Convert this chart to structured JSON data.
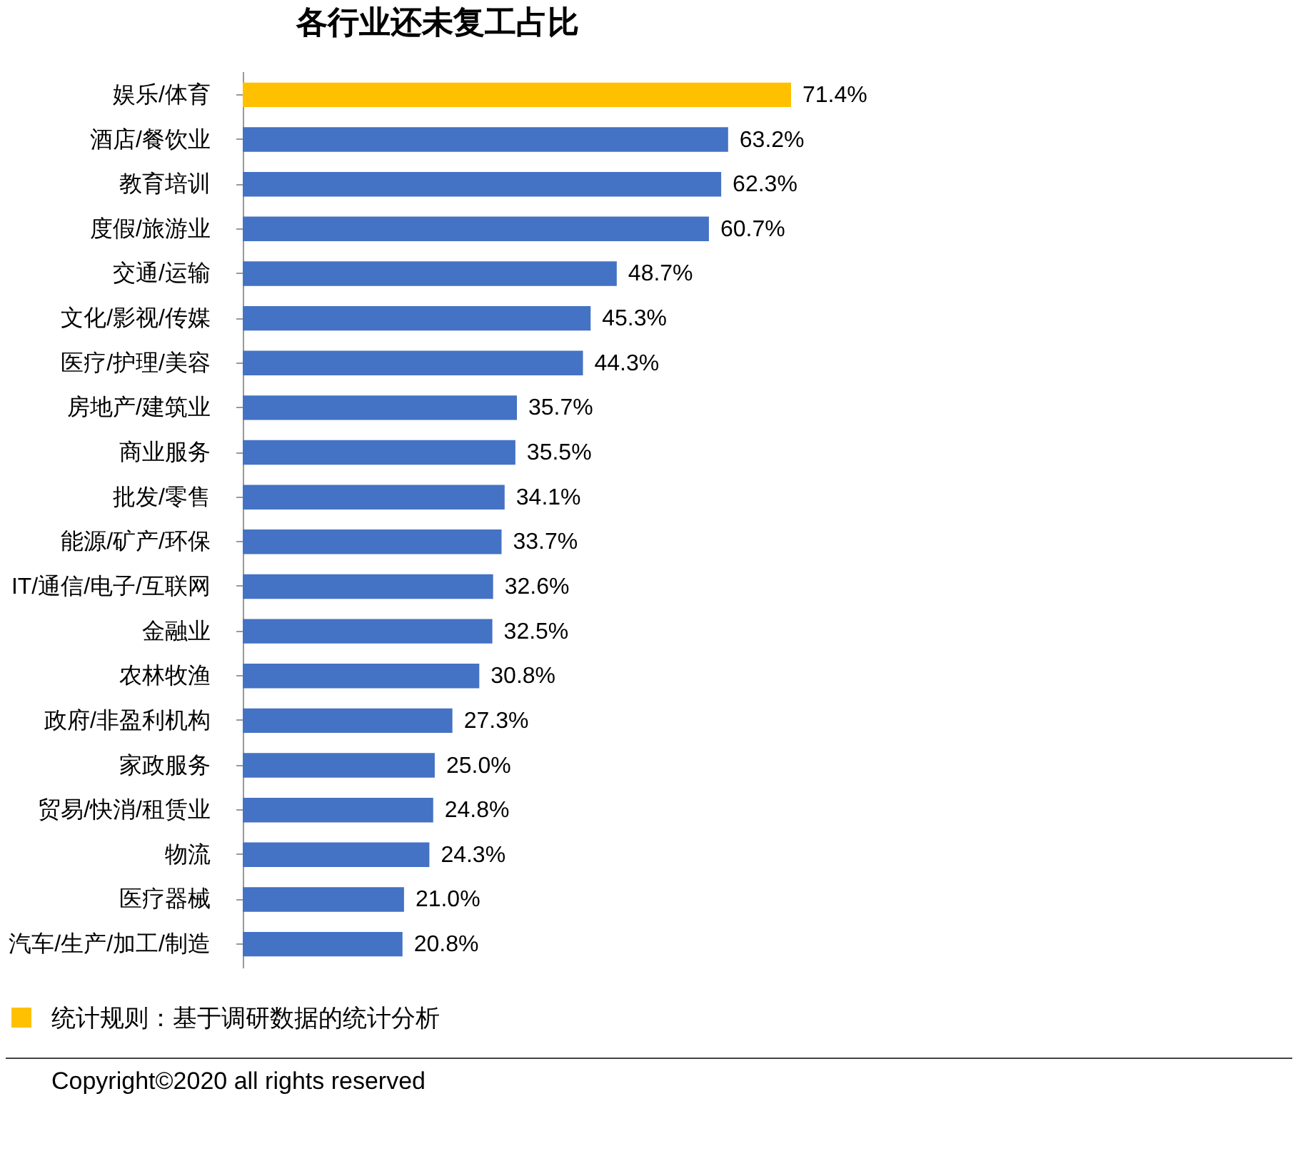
{
  "chart_data": {
    "type": "bar",
    "orientation": "horizontal",
    "title": "各行业还未复工占比",
    "categories": [
      "娱乐/体育",
      "酒店/餐饮业",
      "教育培训",
      "度假/旅游业",
      "交通/运输",
      "文化/影视/传媒",
      "医疗/护理/美容",
      "房地产/建筑业",
      "商业服务",
      "批发/零售",
      "能源/矿产/环保",
      "IT/通信/电子/互联网",
      "金融业",
      "农林牧渔",
      "政府/非盈利机构",
      "家政服务",
      "贸易/快消/租赁业",
      "物流",
      "医疗器械",
      "汽车/生产/加工/制造"
    ],
    "values": [
      71.4,
      63.2,
      62.3,
      60.7,
      48.7,
      45.3,
      44.3,
      35.7,
      35.5,
      34.1,
      33.7,
      32.6,
      32.5,
      30.8,
      27.3,
      25.0,
      24.8,
      24.3,
      21.0,
      20.8
    ],
    "value_labels": [
      "71.4%",
      "63.2%",
      "62.3%",
      "60.7%",
      "48.7%",
      "45.3%",
      "44.3%",
      "35.7%",
      "35.5%",
      "34.1%",
      "33.7%",
      "32.6%",
      "32.5%",
      "30.8%",
      "27.3%",
      "25.0%",
      "24.8%",
      "24.3%",
      "21.0%",
      "20.8%"
    ],
    "colors": [
      "#ffc000",
      "#4472c4",
      "#4472c4",
      "#4472c4",
      "#4472c4",
      "#4472c4",
      "#4472c4",
      "#4472c4",
      "#4472c4",
      "#4472c4",
      "#4472c4",
      "#4472c4",
      "#4472c4",
      "#4472c4",
      "#4472c4",
      "#4472c4",
      "#4472c4",
      "#4472c4",
      "#4472c4",
      "#4472c4"
    ],
    "annotations": [
      "统计规则：基于调研数据的统计分析",
      "Copyright©2020 all rights reserved"
    ]
  }
}
